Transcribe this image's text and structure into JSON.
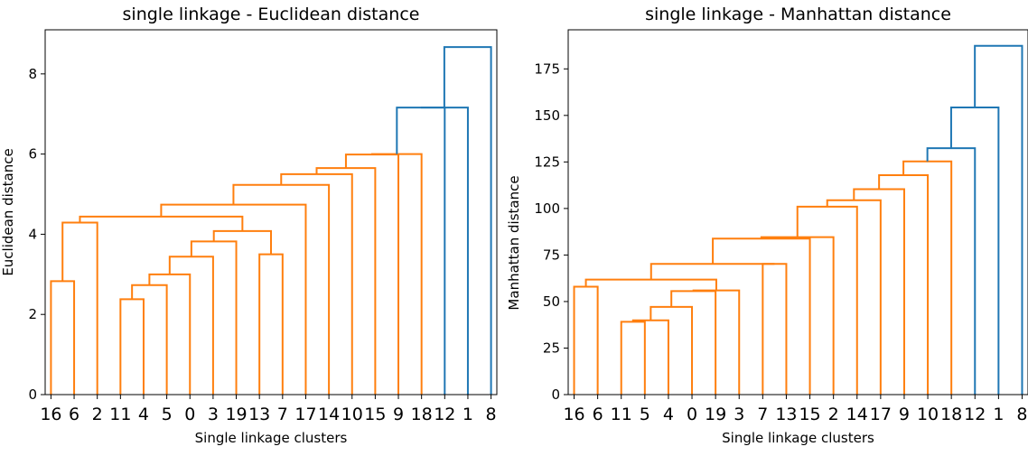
{
  "chart_data": [
    {
      "type": "dendrogram",
      "title": "single linkage - Euclidean distance",
      "xlabel": "Single linkage clusters",
      "ylabel": "Euclidean distance",
      "ylim": [
        0,
        9.1
      ],
      "yticks": [
        0,
        2,
        4,
        6,
        8
      ],
      "leaves": [
        "16",
        "6",
        "2",
        "11",
        "4",
        "5",
        "0",
        "3",
        "19",
        "13",
        "7",
        "17",
        "14",
        "10",
        "15",
        "9",
        "18",
        "12",
        "1",
        "8"
      ],
      "colors": {
        "cluster": "#ff7f0e",
        "above_threshold": "#1f77b4"
      },
      "merges": [
        {
          "id": 20,
          "left": 3,
          "right": 4,
          "height": 2.38,
          "color": "cluster"
        },
        {
          "id": 21,
          "left": 20,
          "right": 5,
          "height": 2.73,
          "color": "cluster"
        },
        {
          "id": 22,
          "left": 0,
          "right": 1,
          "height": 2.83,
          "color": "cluster"
        },
        {
          "id": 23,
          "left": 21,
          "right": 6,
          "height": 3.0,
          "color": "cluster"
        },
        {
          "id": 24,
          "left": 23,
          "right": 7,
          "height": 3.44,
          "color": "cluster"
        },
        {
          "id": 25,
          "left": 9,
          "right": 10,
          "height": 3.5,
          "color": "cluster"
        },
        {
          "id": 26,
          "left": 24,
          "right": 8,
          "height": 3.82,
          "color": "cluster"
        },
        {
          "id": 27,
          "left": 26,
          "right": 25,
          "height": 4.08,
          "color": "cluster"
        },
        {
          "id": 28,
          "left": 22,
          "right": 2,
          "height": 4.29,
          "color": "cluster"
        },
        {
          "id": 29,
          "left": 28,
          "right": 27,
          "height": 4.44,
          "color": "cluster"
        },
        {
          "id": 30,
          "left": 29,
          "right": 11,
          "height": 4.74,
          "color": "cluster"
        },
        {
          "id": 31,
          "left": 30,
          "right": 12,
          "height": 5.23,
          "color": "cluster"
        },
        {
          "id": 32,
          "left": 31,
          "right": 13,
          "height": 5.5,
          "color": "cluster"
        },
        {
          "id": 33,
          "left": 32,
          "right": 14,
          "height": 5.65,
          "color": "cluster"
        },
        {
          "id": 34,
          "left": 33,
          "right": 15,
          "height": 5.99,
          "color": "cluster"
        },
        {
          "id": 35,
          "left": 34,
          "right": 16,
          "height": 6.0,
          "color": "cluster"
        },
        {
          "id": 36,
          "left": 35,
          "right": 17,
          "height": 7.16,
          "color": "above_threshold"
        },
        {
          "id": 37,
          "left": 36,
          "right": 18,
          "height": 7.16,
          "color": "above_threshold"
        },
        {
          "id": 38,
          "left": 37,
          "right": 19,
          "height": 8.67,
          "color": "above_threshold"
        }
      ]
    },
    {
      "type": "dendrogram",
      "title": "single linkage - Manhattan distance",
      "xlabel": "Single linkage clusters",
      "ylabel": "Manhattan distance",
      "ylim": [
        0,
        196
      ],
      "yticks": [
        0,
        25,
        50,
        75,
        100,
        125,
        150,
        175
      ],
      "leaves": [
        "16",
        "6",
        "11",
        "5",
        "4",
        "0",
        "19",
        "3",
        "7",
        "13",
        "15",
        "2",
        "14",
        "17",
        "9",
        "10",
        "18",
        "12",
        "1",
        "8"
      ],
      "colors": {
        "cluster": "#ff7f0e",
        "above_threshold": "#1f77b4"
      },
      "merges": [
        {
          "id": 20,
          "left": 2,
          "right": 3,
          "height": 39.1,
          "color": "cluster"
        },
        {
          "id": 21,
          "left": 20,
          "right": 4,
          "height": 39.9,
          "color": "cluster"
        },
        {
          "id": 22,
          "left": 21,
          "right": 5,
          "height": 47.1,
          "color": "cluster"
        },
        {
          "id": 23,
          "left": 22,
          "right": 6,
          "height": 55.6,
          "color": "cluster"
        },
        {
          "id": 24,
          "left": 23,
          "right": 7,
          "height": 56.0,
          "color": "cluster"
        },
        {
          "id": 25,
          "left": 0,
          "right": 1,
          "height": 58.0,
          "color": "cluster"
        },
        {
          "id": 26,
          "left": 25,
          "right": 24,
          "height": 61.8,
          "color": "cluster"
        },
        {
          "id": 27,
          "left": 8,
          "right": 9,
          "height": 70.2,
          "color": "cluster"
        },
        {
          "id": 28,
          "left": 26,
          "right": 27,
          "height": 70.2,
          "color": "cluster"
        },
        {
          "id": 29,
          "left": 28,
          "right": 10,
          "height": 83.8,
          "color": "cluster"
        },
        {
          "id": 30,
          "left": 29,
          "right": 11,
          "height": 84.6,
          "color": "cluster"
        },
        {
          "id": 31,
          "left": 30,
          "right": 12,
          "height": 101.0,
          "color": "cluster"
        },
        {
          "id": 32,
          "left": 31,
          "right": 13,
          "height": 104.4,
          "color": "cluster"
        },
        {
          "id": 33,
          "left": 32,
          "right": 14,
          "height": 110.4,
          "color": "cluster"
        },
        {
          "id": 34,
          "left": 33,
          "right": 15,
          "height": 117.9,
          "color": "cluster"
        },
        {
          "id": 35,
          "left": 34,
          "right": 16,
          "height": 125.3,
          "color": "cluster"
        },
        {
          "id": 36,
          "left": 35,
          "right": 17,
          "height": 132.4,
          "color": "above_threshold"
        },
        {
          "id": 37,
          "left": 36,
          "right": 18,
          "height": 154.3,
          "color": "above_threshold"
        },
        {
          "id": 38,
          "left": 37,
          "right": 19,
          "height": 187.4,
          "color": "above_threshold"
        }
      ]
    }
  ]
}
